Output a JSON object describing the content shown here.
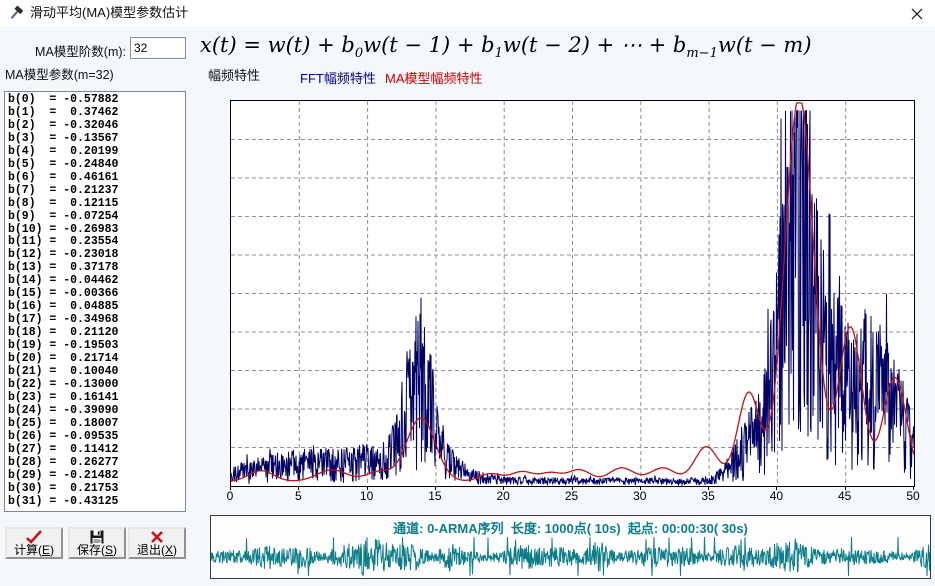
{
  "window": {
    "title": "滑动平均(MA)模型参数估计"
  },
  "controls": {
    "order_label": "MA模型阶数(m):",
    "order_value": "32",
    "params_label": "MA模型参数(m=32)",
    "formula_tokens": [
      {
        "text": "x(t) = w(t) + b"
      },
      {
        "sub": "0"
      },
      {
        "text": "w(t − 1) + b"
      },
      {
        "sub": "1"
      },
      {
        "text": "w(t − 2) + ⋯ + b"
      },
      {
        "sub": "m−1"
      },
      {
        "text": "w(t − m)"
      }
    ]
  },
  "legend": {
    "amplitude_label": "幅频特性",
    "fft_label": "FFT幅频特性",
    "fft_color": "#00008b",
    "ma_label": "MA模型幅频特性",
    "ma_color": "#cc0000"
  },
  "coefficients": {
    "prefix": "b",
    "values": [
      -0.57882,
      0.37462,
      -0.32046,
      -0.13567,
      0.20199,
      -0.2484,
      0.46161,
      -0.21237,
      0.12115,
      -0.07254,
      -0.26983,
      0.23554,
      -0.23018,
      0.37178,
      -0.04462,
      -0.00366,
      0.04885,
      -0.34968,
      0.2112,
      -0.19503,
      0.21714,
      0.1004,
      -0.13,
      0.16141,
      -0.3909,
      0.18007,
      -0.09535,
      0.11412,
      0.26277,
      -0.21482,
      0.21753,
      -0.43125
    ]
  },
  "buttons": [
    {
      "text": "计算",
      "mnemonic": "E",
      "icon": "check"
    },
    {
      "text": "保存",
      "mnemonic": "S",
      "icon": "save"
    },
    {
      "text": "退出",
      "mnemonic": "X",
      "icon": "close"
    }
  ],
  "chart_data": {
    "type": "line",
    "title": "幅频特性",
    "x_range": [
      0,
      50
    ],
    "x_ticks": [
      0,
      5,
      10,
      15,
      20,
      25,
      30,
      35,
      40,
      45,
      50
    ],
    "y_range_normalized": [
      0,
      1
    ],
    "grid": {
      "vertical_divisions": 10,
      "horizontal_divisions": 10,
      "style": "dashed"
    },
    "series": [
      {
        "name": "FFT幅频特性",
        "render": "noisy_spectrum",
        "color": "#000066",
        "noise_floor": 0.022,
        "peaks": [
          {
            "x": 3.0,
            "h": 0.055,
            "w": 2.5
          },
          {
            "x": 7.0,
            "h": 0.055,
            "w": 2.0
          },
          {
            "x": 9.8,
            "h": 0.04,
            "w": 1.4
          },
          {
            "x": 13.8,
            "h": 0.33,
            "w": 1.0
          },
          {
            "x": 13.8,
            "h": 0.1,
            "w": 2.4
          },
          {
            "x": 38.0,
            "h": 0.12,
            "w": 1.2
          },
          {
            "x": 41.6,
            "h": 0.92,
            "w": 1.2
          },
          {
            "x": 42.3,
            "h": 0.3,
            "w": 2.2
          },
          {
            "x": 45.3,
            "h": 0.2,
            "w": 1.1
          },
          {
            "x": 46.9,
            "h": 0.17,
            "w": 0.9
          },
          {
            "x": 48.6,
            "h": 0.24,
            "w": 1.0
          },
          {
            "x": 46.5,
            "h": 0.1,
            "w": 3.0
          }
        ]
      },
      {
        "name": "MA模型幅频特性",
        "render": "smooth_curve",
        "color": "#c41414",
        "baseline": 0.012,
        "peaks": [
          {
            "x": 2.2,
            "h": 0.028,
            "w": 0.9
          },
          {
            "x": 7.4,
            "h": 0.03,
            "w": 1.1
          },
          {
            "x": 10.8,
            "h": 0.025,
            "w": 0.9
          },
          {
            "x": 13.9,
            "h": 0.165,
            "w": 1.05
          },
          {
            "x": 19.0,
            "h": 0.02,
            "w": 0.8
          },
          {
            "x": 21.3,
            "h": 0.025,
            "w": 0.8
          },
          {
            "x": 23.4,
            "h": 0.022,
            "w": 0.8
          },
          {
            "x": 25.5,
            "h": 0.03,
            "w": 0.8
          },
          {
            "x": 28.6,
            "h": 0.035,
            "w": 0.9
          },
          {
            "x": 31.6,
            "h": 0.035,
            "w": 0.9
          },
          {
            "x": 34.8,
            "h": 0.09,
            "w": 0.85
          },
          {
            "x": 37.9,
            "h": 0.23,
            "w": 0.8
          },
          {
            "x": 41.6,
            "h": 1.0,
            "w": 1.05
          },
          {
            "x": 45.35,
            "h": 0.4,
            "w": 0.85
          },
          {
            "x": 48.6,
            "h": 0.27,
            "w": 0.85
          }
        ]
      }
    ]
  },
  "signal_strip": {
    "info": "通道: 0-ARMA序列  长度: 1000点( 10s)  起点: 00:00:30( 30s)",
    "color": "#0d7d8a"
  }
}
